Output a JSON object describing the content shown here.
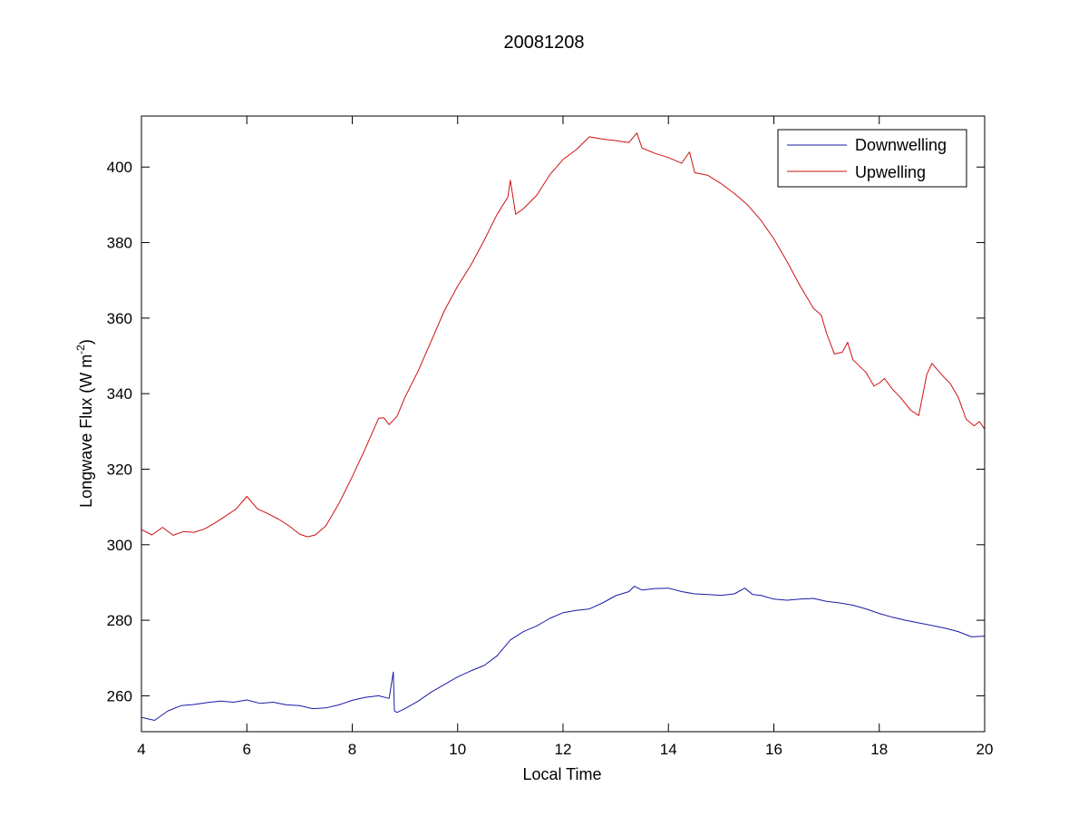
{
  "chart_data": {
    "type": "line",
    "title": "20081208",
    "xlabel": "Local Time",
    "ylabel_main": "Longwave Flux (W m",
    "ylabel_sup": "-2",
    "ylabel_close": ")",
    "xlim": [
      4,
      20
    ],
    "ylim": [
      250.5,
      413.5
    ],
    "xticks": [
      4,
      6,
      8,
      10,
      12,
      14,
      16,
      18,
      20
    ],
    "yticks": [
      260,
      280,
      300,
      320,
      340,
      360,
      380,
      400
    ],
    "grid": false,
    "legend_position": "top-right",
    "series": [
      {
        "name": "Downwelling",
        "color": "#1a1aa6",
        "points": [
          [
            4.0,
            254.3
          ],
          [
            4.25,
            253.5
          ],
          [
            4.5,
            256.0
          ],
          [
            4.75,
            257.4
          ],
          [
            5.0,
            257.7
          ],
          [
            5.25,
            258.2
          ],
          [
            5.5,
            258.6
          ],
          [
            5.75,
            258.3
          ],
          [
            6.0,
            258.9
          ],
          [
            6.25,
            258.0
          ],
          [
            6.5,
            258.3
          ],
          [
            6.75,
            257.6
          ],
          [
            7.0,
            257.4
          ],
          [
            7.25,
            256.6
          ],
          [
            7.5,
            256.8
          ],
          [
            7.75,
            257.6
          ],
          [
            8.0,
            258.8
          ],
          [
            8.25,
            259.6
          ],
          [
            8.5,
            260.0
          ],
          [
            8.7,
            259.3
          ],
          [
            8.78,
            266.3
          ],
          [
            8.8,
            256.0
          ],
          [
            8.85,
            255.6
          ],
          [
            9.0,
            256.6
          ],
          [
            9.25,
            258.6
          ],
          [
            9.5,
            261.0
          ],
          [
            9.75,
            263.0
          ],
          [
            10.0,
            265.0
          ],
          [
            10.25,
            266.6
          ],
          [
            10.5,
            268.0
          ],
          [
            10.75,
            270.6
          ],
          [
            11.0,
            274.8
          ],
          [
            11.25,
            277.0
          ],
          [
            11.5,
            278.5
          ],
          [
            11.75,
            280.5
          ],
          [
            12.0,
            282.0
          ],
          [
            12.25,
            282.6
          ],
          [
            12.5,
            283.0
          ],
          [
            12.75,
            284.6
          ],
          [
            13.0,
            286.5
          ],
          [
            13.25,
            287.6
          ],
          [
            13.35,
            289.0
          ],
          [
            13.5,
            288.0
          ],
          [
            13.75,
            288.4
          ],
          [
            14.0,
            288.5
          ],
          [
            14.25,
            287.6
          ],
          [
            14.5,
            287.0
          ],
          [
            14.75,
            286.8
          ],
          [
            15.0,
            286.6
          ],
          [
            15.25,
            287.0
          ],
          [
            15.45,
            288.5
          ],
          [
            15.6,
            286.8
          ],
          [
            15.75,
            286.6
          ],
          [
            16.0,
            285.6
          ],
          [
            16.25,
            285.3
          ],
          [
            16.5,
            285.6
          ],
          [
            16.75,
            285.8
          ],
          [
            17.0,
            285.0
          ],
          [
            17.25,
            284.6
          ],
          [
            17.5,
            284.0
          ],
          [
            17.75,
            283.0
          ],
          [
            18.0,
            281.8
          ],
          [
            18.25,
            280.8
          ],
          [
            18.5,
            280.0
          ],
          [
            18.75,
            279.3
          ],
          [
            19.0,
            278.6
          ],
          [
            19.25,
            277.9
          ],
          [
            19.5,
            277.0
          ],
          [
            19.75,
            275.6
          ],
          [
            20.0,
            275.8
          ]
        ]
      },
      {
        "name": "Upwelling",
        "color": "#cc1111",
        "points": [
          [
            4.0,
            304.0
          ],
          [
            4.2,
            302.6
          ],
          [
            4.4,
            304.6
          ],
          [
            4.6,
            302.5
          ],
          [
            4.8,
            303.5
          ],
          [
            5.0,
            303.3
          ],
          [
            5.2,
            304.2
          ],
          [
            5.4,
            305.8
          ],
          [
            5.6,
            307.6
          ],
          [
            5.8,
            309.5
          ],
          [
            6.0,
            312.8
          ],
          [
            6.2,
            309.5
          ],
          [
            6.4,
            308.2
          ],
          [
            6.6,
            306.8
          ],
          [
            6.8,
            305.0
          ],
          [
            7.0,
            302.8
          ],
          [
            7.15,
            302.1
          ],
          [
            7.3,
            302.6
          ],
          [
            7.5,
            305.0
          ],
          [
            7.75,
            311.0
          ],
          [
            8.0,
            318.0
          ],
          [
            8.25,
            325.5
          ],
          [
            8.5,
            333.5
          ],
          [
            8.6,
            333.6
          ],
          [
            8.7,
            331.8
          ],
          [
            8.85,
            334.0
          ],
          [
            9.0,
            339.0
          ],
          [
            9.25,
            346.0
          ],
          [
            9.5,
            354.0
          ],
          [
            9.75,
            362.0
          ],
          [
            10.0,
            368.5
          ],
          [
            10.25,
            374.0
          ],
          [
            10.5,
            380.5
          ],
          [
            10.75,
            387.5
          ],
          [
            10.95,
            392.0
          ],
          [
            11.0,
            396.5
          ],
          [
            11.1,
            387.5
          ],
          [
            11.25,
            389.0
          ],
          [
            11.5,
            392.5
          ],
          [
            11.75,
            398.0
          ],
          [
            12.0,
            402.0
          ],
          [
            12.25,
            404.6
          ],
          [
            12.5,
            408.0
          ],
          [
            12.75,
            407.4
          ],
          [
            13.0,
            407.0
          ],
          [
            13.25,
            406.5
          ],
          [
            13.4,
            409.0
          ],
          [
            13.5,
            405.0
          ],
          [
            13.75,
            403.6
          ],
          [
            14.0,
            402.5
          ],
          [
            14.25,
            401.0
          ],
          [
            14.4,
            404.0
          ],
          [
            14.5,
            398.5
          ],
          [
            14.75,
            397.8
          ],
          [
            15.0,
            395.6
          ],
          [
            15.25,
            393.0
          ],
          [
            15.5,
            390.0
          ],
          [
            15.75,
            386.0
          ],
          [
            16.0,
            381.0
          ],
          [
            16.25,
            375.0
          ],
          [
            16.5,
            368.5
          ],
          [
            16.75,
            362.6
          ],
          [
            16.9,
            360.8
          ],
          [
            17.0,
            356.0
          ],
          [
            17.15,
            350.5
          ],
          [
            17.3,
            351.0
          ],
          [
            17.4,
            353.6
          ],
          [
            17.5,
            349.0
          ],
          [
            17.75,
            345.6
          ],
          [
            17.9,
            342.0
          ],
          [
            18.0,
            342.8
          ],
          [
            18.1,
            344.0
          ],
          [
            18.25,
            341.2
          ],
          [
            18.4,
            339.0
          ],
          [
            18.6,
            335.6
          ],
          [
            18.75,
            334.2
          ],
          [
            18.9,
            345.0
          ],
          [
            19.0,
            348.0
          ],
          [
            19.2,
            344.8
          ],
          [
            19.35,
            342.6
          ],
          [
            19.5,
            339.0
          ],
          [
            19.65,
            333.2
          ],
          [
            19.8,
            331.5
          ],
          [
            19.9,
            332.6
          ],
          [
            20.0,
            330.6
          ]
        ]
      }
    ]
  }
}
